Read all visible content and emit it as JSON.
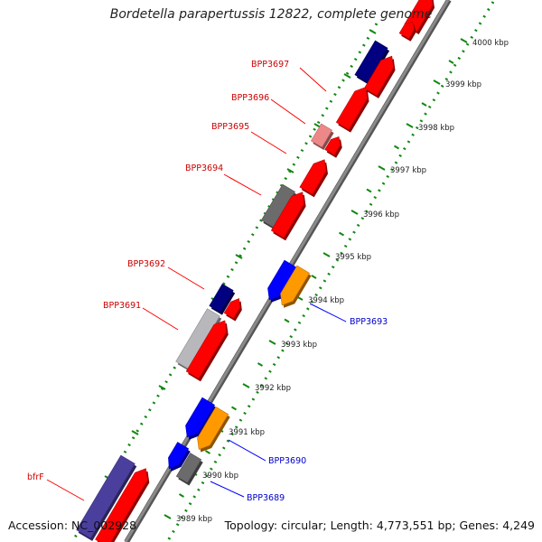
{
  "title": "Bordetella parapertussis 12822, complete genome",
  "accession": "Accession: NC_002928",
  "summary": "Topology: circular; Length: 4,773,551 bp; Genes: 4,249",
  "colors": {
    "forward_cds": "#ff0000",
    "forward_label": "#cc0000",
    "reverse_label": "#0000cc",
    "navy": "#000080",
    "blue": "#0000ff",
    "orange": "#ff9900",
    "gray": "#6b6b6b",
    "pink": "#ee8888",
    "lavender": "#4b3f9e",
    "silver": "#b8b8bc",
    "backbone": "#888888",
    "tick": "#118811"
  },
  "scale_ticks": [
    "4000 kbp",
    "3999 kbp",
    "3998 kbp",
    "3997 kbp",
    "3996 kbp",
    "3995 kbp",
    "3994 kbp",
    "3993 kbp",
    "3992 kbp",
    "3991 kbp",
    "3990 kbp",
    "3989 kbp"
  ],
  "forward_labels": [
    "BPP3697",
    "BPP3696",
    "BPP3695",
    "BPP3694",
    "BPP3692",
    "BPP3691",
    "bfrF"
  ],
  "reverse_labels": [
    "BPP3693",
    "BPP3690",
    "BPP3689"
  ]
}
